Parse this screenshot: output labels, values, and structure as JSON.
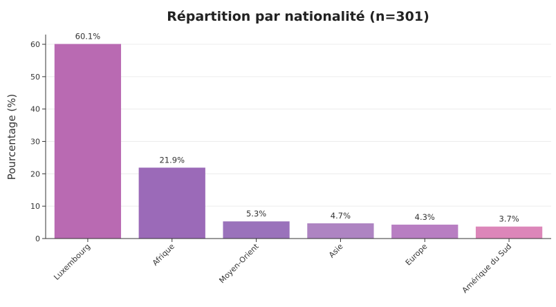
{
  "chart_data": {
    "type": "bar",
    "title": "Répartition par nationalité (n=301)",
    "xlabel": "",
    "ylabel": "Pourcentage (%)",
    "ylim": [
      0,
      63
    ],
    "yticks": [
      0,
      10,
      20,
      30,
      40,
      50,
      60
    ],
    "grid": true,
    "categories": [
      "Luxembourg",
      "Afrique",
      "Moyen-Orient",
      "Asie",
      "Europe",
      "Amérique du Sud"
    ],
    "values": [
      60.1,
      21.9,
      5.3,
      4.7,
      4.3,
      3.7
    ],
    "data_labels": [
      "60.1%",
      "21.9%",
      "5.3%",
      "4.7%",
      "4.3%",
      "3.7%"
    ],
    "colors": [
      "#b96ab2",
      "#9b6ab8",
      "#9a72bb",
      "#ae84c2",
      "#b87ec2",
      "#dc86b9"
    ]
  }
}
